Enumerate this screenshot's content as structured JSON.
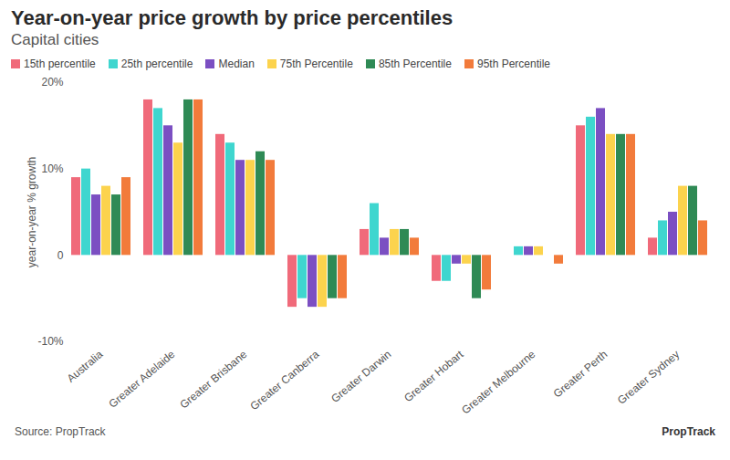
{
  "chart_data": {
    "type": "bar",
    "title": "Year-on-year price growth by price percentiles",
    "subtitle": "Capital cities",
    "y_label": "year-on-year % growth",
    "source": "Source: PropTrack",
    "logo_text": "PropTrack",
    "categories": [
      "Australia",
      "Greater Adelaide",
      "Greater Brisbane",
      "Greater Canberra",
      "Greater Darwin",
      "Greater Hobart",
      "Greater Melbourne",
      "Greater Perth",
      "Greater Sydney"
    ],
    "series": [
      {
        "name": "15th percentile",
        "color": "#f06a7a",
        "values": [
          9,
          18,
          14,
          -6,
          3,
          -3,
          0,
          15,
          2
        ]
      },
      {
        "name": "25th percentile",
        "color": "#3fd6cf",
        "values": [
          10,
          17,
          13,
          -5,
          6,
          -3,
          1,
          16,
          4
        ]
      },
      {
        "name": "Median",
        "color": "#7b4fc2",
        "values": [
          7,
          15,
          11,
          -6,
          2,
          -1,
          1,
          17,
          5
        ]
      },
      {
        "name": "75th Percentile",
        "color": "#fcd34d",
        "values": [
          8,
          13,
          11,
          -6,
          3,
          -1,
          1,
          14,
          8
        ]
      },
      {
        "name": "85th Percentile",
        "color": "#2f8a55",
        "values": [
          7,
          18,
          12,
          -5,
          3,
          -5,
          0,
          14,
          8
        ]
      },
      {
        "name": "95th Percentile",
        "color": "#f27b3b",
        "values": [
          9,
          18,
          11,
          -5,
          2,
          -4,
          -1,
          14,
          4
        ]
      }
    ],
    "ylim": [
      -10,
      20
    ],
    "yticks": [
      {
        "value": -10,
        "label": "-10%"
      },
      0,
      {
        "value": 10,
        "label": "10%"
      },
      {
        "value": 20,
        "label": "20%"
      }
    ],
    "grid": false,
    "legend": "top"
  }
}
